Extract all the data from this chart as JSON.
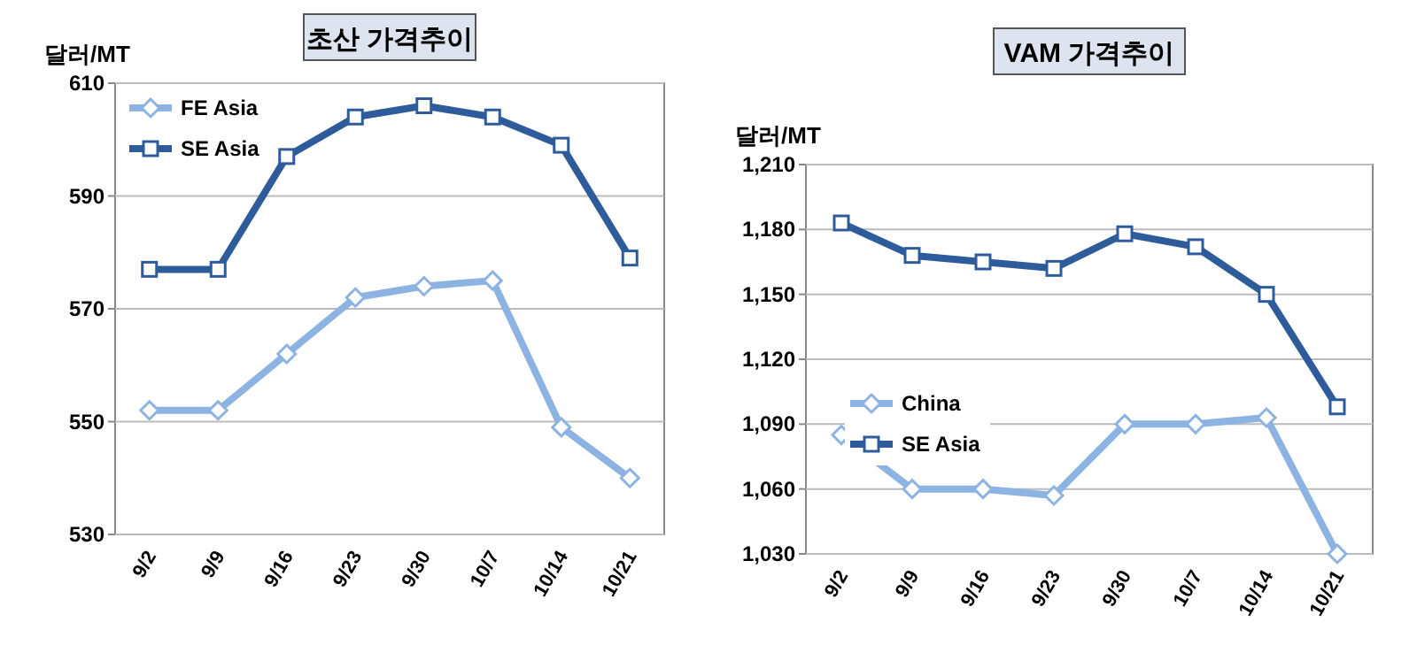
{
  "chart_data": [
    {
      "type": "line",
      "title": "초산 가격추이",
      "ylabel": "달러/MT",
      "categories": [
        "9/2",
        "9/9",
        "9/16",
        "9/23",
        "9/30",
        "10/7",
        "10/14",
        "10/21"
      ],
      "ylim": [
        530,
        610
      ],
      "yticks": [
        530,
        550,
        570,
        590,
        610
      ],
      "grid": "y",
      "legend": "top left",
      "line_style": "solid",
      "series": [
        {
          "name": "FE Asia",
          "color": "#8db3e2",
          "marker": "diamond",
          "values": [
            552,
            552,
            562,
            572,
            574,
            575,
            549,
            540
          ]
        },
        {
          "name": "SE Asia",
          "color": "#2e5c9a",
          "marker": "square",
          "values": [
            577,
            577,
            597,
            604,
            606,
            604,
            599,
            579
          ]
        }
      ]
    },
    {
      "type": "line",
      "title": "VAM 가격추이",
      "ylabel": "달러/MT",
      "categories": [
        "9/2",
        "9/9",
        "9/16",
        "9/23",
        "9/30",
        "10/7",
        "10/14",
        "10/21"
      ],
      "ylim": [
        1030,
        1210
      ],
      "yticks": [
        {
          "value": 1030,
          "label": "1,030"
        },
        {
          "value": 1060,
          "label": "1,060"
        },
        {
          "value": 1090,
          "label": "1,090"
        },
        {
          "value": 1120,
          "label": "1,120"
        },
        {
          "value": 1150,
          "label": "1,150"
        },
        {
          "value": 1180,
          "label": "1,180"
        },
        {
          "value": 1210,
          "label": "1,210"
        }
      ],
      "grid": "y",
      "legend": "left",
      "line_style": "solid",
      "series": [
        {
          "name": "China",
          "color": "#8db3e2",
          "marker": "diamond",
          "values": [
            1085,
            1060,
            1060,
            1057,
            1090,
            1090,
            1093,
            1030
          ]
        },
        {
          "name": "SE Asia",
          "color": "#2e5c9a",
          "marker": "square",
          "values": [
            1183,
            1168,
            1165,
            1162,
            1178,
            1172,
            1150,
            1098
          ]
        }
      ]
    }
  ]
}
